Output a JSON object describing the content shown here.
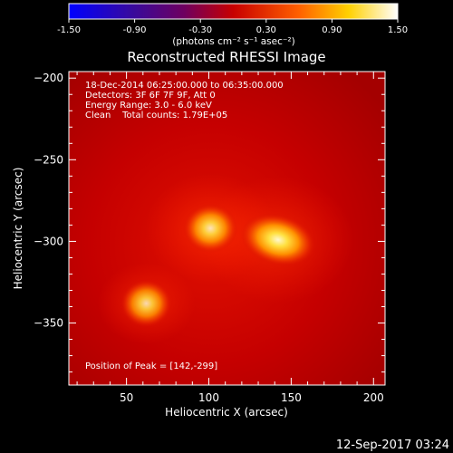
{
  "chart_data": {
    "type": "heatmap",
    "title": "Reconstructed RHESSI Image",
    "xlabel": "Heliocentric X (arcsec)",
    "ylabel": "Heliocentric Y (arcsec)",
    "xlim": [
      15,
      207
    ],
    "ylim": [
      -388,
      -196
    ],
    "x_ticks": [
      50,
      100,
      150,
      200
    ],
    "y_ticks": [
      -200,
      -250,
      -300,
      -350
    ],
    "colorbar": {
      "ticks": [
        "-1.50",
        "-0.90",
        "-0.30",
        "0.30",
        "0.90",
        "1.50"
      ],
      "range": [
        -1.5,
        1.5
      ],
      "unit": "(photons cm⁻² s⁻¹ asec⁻²)",
      "colormap": "blue-purple-red-orange-yellow-white"
    },
    "annotations": [
      "18-Dec-2014 06:25:00.000 to 06:35:00.000",
      "Detectors: 3F 6F 7F 9F, Att 0",
      "Energy Range: 3.0 - 6.0 keV",
      "Clean    Total counts: 1.79E+05"
    ],
    "peak_label": "Position of Peak = [142,-299]",
    "sources": [
      {
        "x": 142,
        "y": -299,
        "intensity": 1.0
      },
      {
        "x": 101,
        "y": -292,
        "intensity": 0.9
      },
      {
        "x": 62,
        "y": -338,
        "intensity": 0.85
      }
    ]
  },
  "footer_timestamp": "12-Sep-2017 03:24"
}
